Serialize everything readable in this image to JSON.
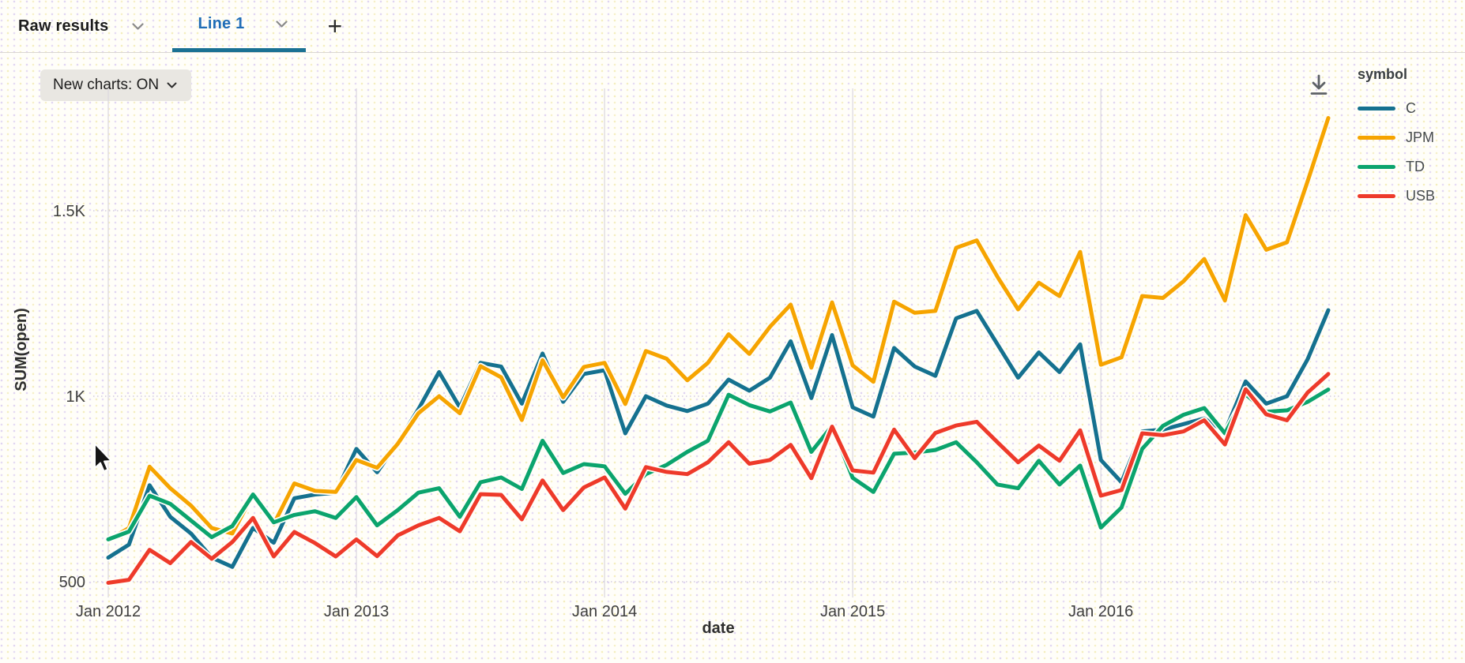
{
  "tab_bar": {
    "tabs": [
      {
        "label": "Raw results",
        "active": false
      },
      {
        "label": "Line 1",
        "active": true
      }
    ],
    "add_tab_label": "+"
  },
  "toolbar": {
    "new_charts_label": "New charts: ON"
  },
  "legend": {
    "title": "symbol",
    "position": "right",
    "items": [
      {
        "label": "C",
        "color": "#15718f"
      },
      {
        "label": "JPM",
        "color": "#f6a400"
      },
      {
        "label": "TD",
        "color": "#0ba46d"
      },
      {
        "label": "USB",
        "color": "#ee3a2a"
      }
    ]
  },
  "icons": {
    "download": "download-arrow-with-bar",
    "tab_chevron": "chevron-down",
    "pill_chevron": "chevron-down",
    "add_tab": "plus"
  },
  "colors": {
    "active_tab_text": "#1f6db6",
    "active_tab_underline": "#1a7193",
    "background": "#fffef9"
  },
  "chart_data": {
    "type": "line",
    "title": "",
    "xlabel": "date",
    "ylabel": "SUM(open)",
    "legend_title": "symbol",
    "grid": "vertical solid at year starts, horizontal dotted at y ticks",
    "ylim": [
      450,
      1800
    ],
    "x_tick_positions": [
      0,
      12,
      24,
      36,
      48
    ],
    "x_tick_labels": [
      "Jan 2012",
      "Jan 2013",
      "Jan 2014",
      "Jan 2015",
      "Jan 2016"
    ],
    "y_ticks": [
      {
        "value": 500,
        "label": "500"
      },
      {
        "value": 1000,
        "label": "1K"
      },
      {
        "value": 1500,
        "label": "1.5K"
      }
    ],
    "x_labels": [
      "Jan 2012",
      "Feb 2012",
      "Mar 2012",
      "Apr 2012",
      "May 2012",
      "Jun 2012",
      "Jul 2012",
      "Aug 2012",
      "Sep 2012",
      "Oct 2012",
      "Nov 2012",
      "Dec 2012",
      "Jan 2013",
      "Feb 2013",
      "Mar 2013",
      "Apr 2013",
      "May 2013",
      "Jun 2013",
      "Jul 2013",
      "Aug 2013",
      "Sep 2013",
      "Oct 2013",
      "Nov 2013",
      "Dec 2013",
      "Jan 2014",
      "Feb 2014",
      "Mar 2014",
      "Apr 2014",
      "May 2014",
      "Jun 2014",
      "Jul 2014",
      "Aug 2014",
      "Sep 2014",
      "Oct 2014",
      "Nov 2014",
      "Dec 2014",
      "Jan 2015",
      "Feb 2015",
      "Mar 2015",
      "Apr 2015",
      "May 2015",
      "Jun 2015",
      "Jul 2015",
      "Aug 2015",
      "Sep 2015",
      "Oct 2015",
      "Nov 2015",
      "Dec 2015",
      "Jan 2016",
      "Feb 2016",
      "Mar 2016",
      "Apr 2016",
      "May 2016",
      "Jun 2016",
      "Jul 2016",
      "Aug 2016",
      "Sep 2016",
      "Oct 2016",
      "Nov 2016",
      "Dec 2016"
    ],
    "series": [
      {
        "name": "C",
        "color": "#15718f",
        "values": [
          565,
          600,
          760,
          675,
          630,
          565,
          540,
          645,
          605,
          725,
          735,
          740,
          858,
          795,
          875,
          965,
          1065,
          970,
          1090,
          1080,
          980,
          1115,
          985,
          1060,
          1070,
          900,
          1000,
          975,
          960,
          980,
          1045,
          1015,
          1050,
          1148,
          995,
          1165,
          970,
          945,
          1130,
          1080,
          1055,
          1210,
          1230,
          1140,
          1050,
          1118,
          1065,
          1140,
          828,
          768,
          905,
          910,
          925,
          940,
          905,
          1040,
          980,
          1000,
          1100,
          1232
        ]
      },
      {
        "name": "JPM",
        "color": "#f6a400",
        "values": [
          612,
          645,
          810,
          752,
          705,
          645,
          630,
          735,
          655,
          765,
          745,
          742,
          828,
          807,
          872,
          954,
          1000,
          954,
          1081,
          1051,
          936,
          1097,
          997,
          1079,
          1090,
          979,
          1122,
          1101,
          1043,
          1090,
          1167,
          1114,
          1187,
          1247,
          1077,
          1253,
          1083,
          1039,
          1255,
          1225,
          1230,
          1400,
          1420,
          1322,
          1234,
          1306,
          1270,
          1389,
          1085,
          1105,
          1270,
          1265,
          1310,
          1370,
          1258,
          1488,
          1395,
          1415,
          1580,
          1750
        ]
      },
      {
        "name": "TD",
        "color": "#0ba46d",
        "values": [
          614,
          635,
          732,
          710,
          665,
          620,
          650,
          735,
          660,
          680,
          690,
          672,
          728,
          652,
          693,
          740,
          752,
          675,
          768,
          781,
          750,
          880,
          793,
          817,
          811,
          737,
          790,
          815,
          850,
          880,
          1004,
          976,
          959,
          983,
          850,
          920,
          780,
          742,
          845,
          848,
          855,
          876,
          822,
          762,
          752,
          826,
          762,
          813,
          646,
          700,
          858,
          920,
          950,
          968,
          900,
          1005,
          958,
          962,
          985,
          1018
        ]
      },
      {
        "name": "USB",
        "color": "#ee3a2a",
        "values": [
          497,
          505,
          586,
          550,
          607,
          562,
          607,
          672,
          568,
          634,
          604,
          568,
          614,
          569,
          625,
          652,
          672,
          636,
          736,
          734,
          668,
          773,
          693,
          754,
          781,
          697,
          809,
          796,
          790,
          822,
          876,
          818,
          828,
          869,
          779,
          918,
          800,
          794,
          910,
          833,
          901,
          921,
          931,
          876,
          822,
          867,
          826,
          908,
          732,
          747,
          900,
          895,
          905,
          935,
          870,
          1019,
          951,
          935,
          1010,
          1060
        ]
      }
    ]
  }
}
